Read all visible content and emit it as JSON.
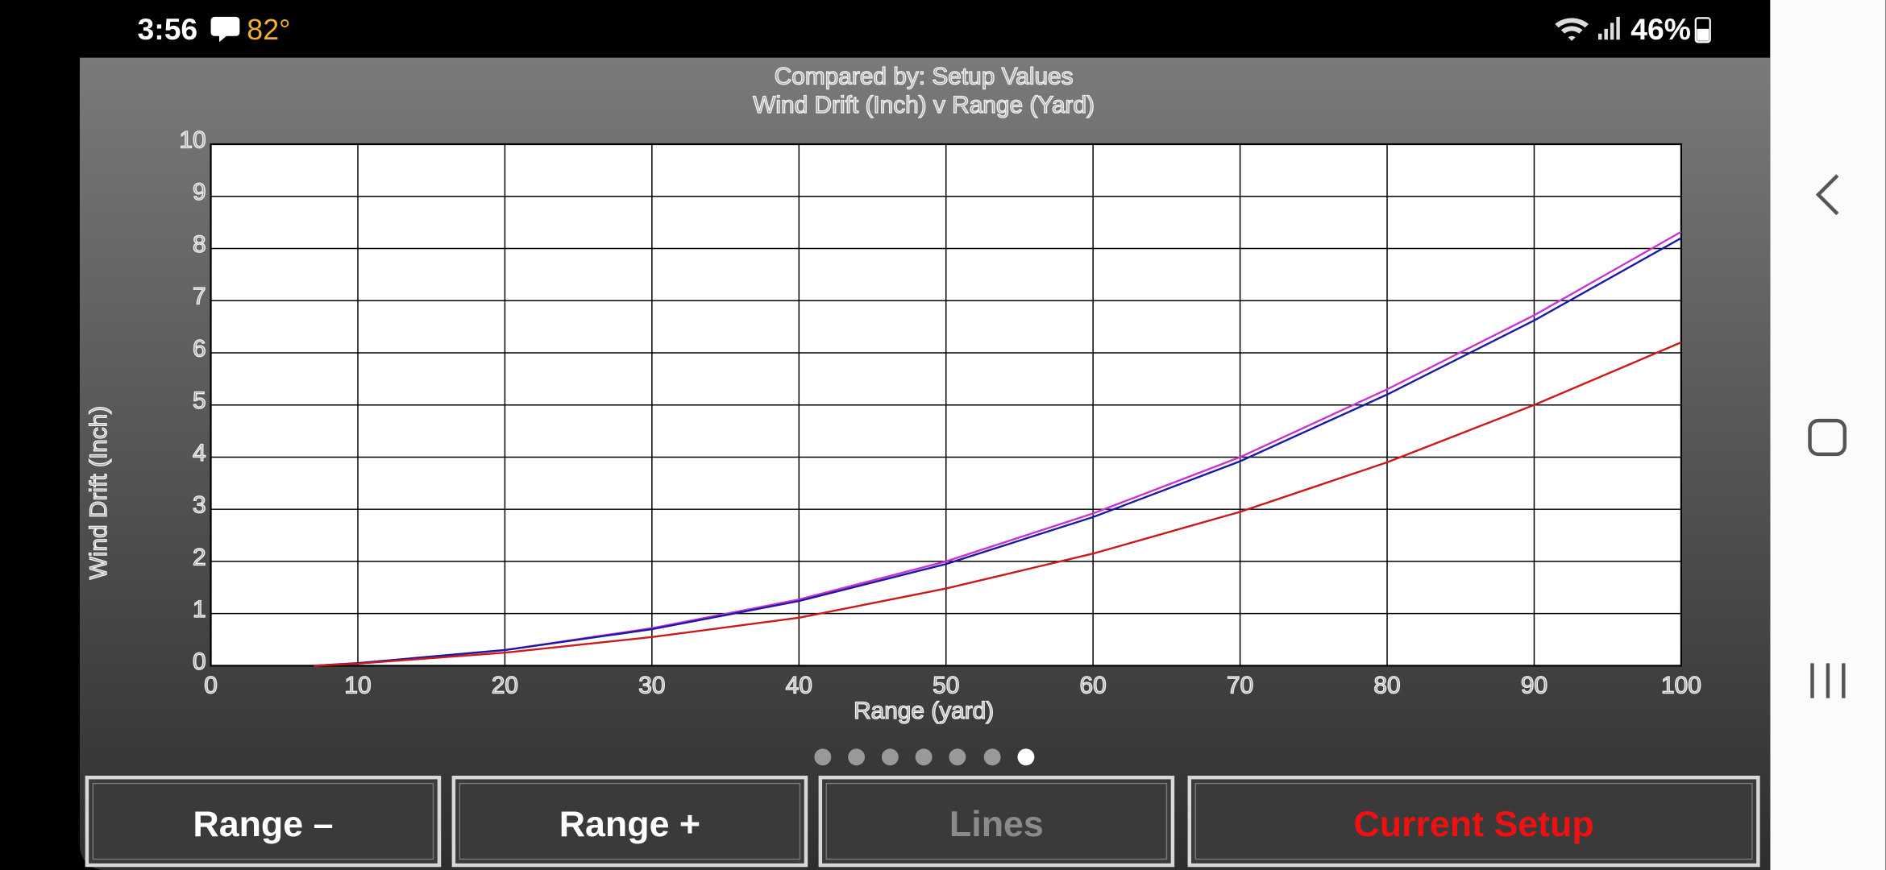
{
  "status_bar": {
    "time": "3:56",
    "temperature": "82°",
    "battery": "46%"
  },
  "chart_data": {
    "type": "line",
    "title": "Compared by: Setup Values",
    "subtitle": "Wind Drift (Inch) v Range (Yard)",
    "x_label": "Range (yard)",
    "y_label": "Wind Drift (Inch)",
    "x": [
      7,
      10,
      20,
      30,
      40,
      50,
      60,
      70,
      80,
      90,
      100
    ],
    "series": [
      {
        "color": "#cc33cc",
        "values": [
          0,
          0.05,
          0.3,
          0.72,
          1.27,
          2.0,
          2.92,
          4.0,
          5.3,
          6.72,
          8.32
        ]
      },
      {
        "color": "#1a1aa8",
        "values": [
          0,
          0.05,
          0.3,
          0.7,
          1.24,
          1.95,
          2.85,
          3.92,
          5.2,
          6.62,
          8.2
        ]
      },
      {
        "color": "#cc1a1a",
        "values": [
          0,
          0.04,
          0.25,
          0.55,
          0.92,
          1.48,
          2.15,
          2.95,
          3.9,
          5.0,
          6.2
        ]
      }
    ],
    "xlim": [
      0,
      100
    ],
    "xticks": [
      0,
      10,
      20,
      30,
      40,
      50,
      60,
      70,
      80,
      90,
      100
    ],
    "ylim": [
      0,
      10
    ],
    "yticks": [
      0,
      1,
      2,
      3,
      4,
      5,
      6,
      7,
      8,
      9,
      10
    ],
    "grid": true
  },
  "buttons": [
    {
      "label": "Range –",
      "color": "#ffffff"
    },
    {
      "label": "Range +",
      "color": "#ffffff"
    },
    {
      "label": "Lines",
      "color": "#8a8a8a"
    },
    {
      "label": "Current Setup",
      "color": "#ee1111"
    }
  ]
}
